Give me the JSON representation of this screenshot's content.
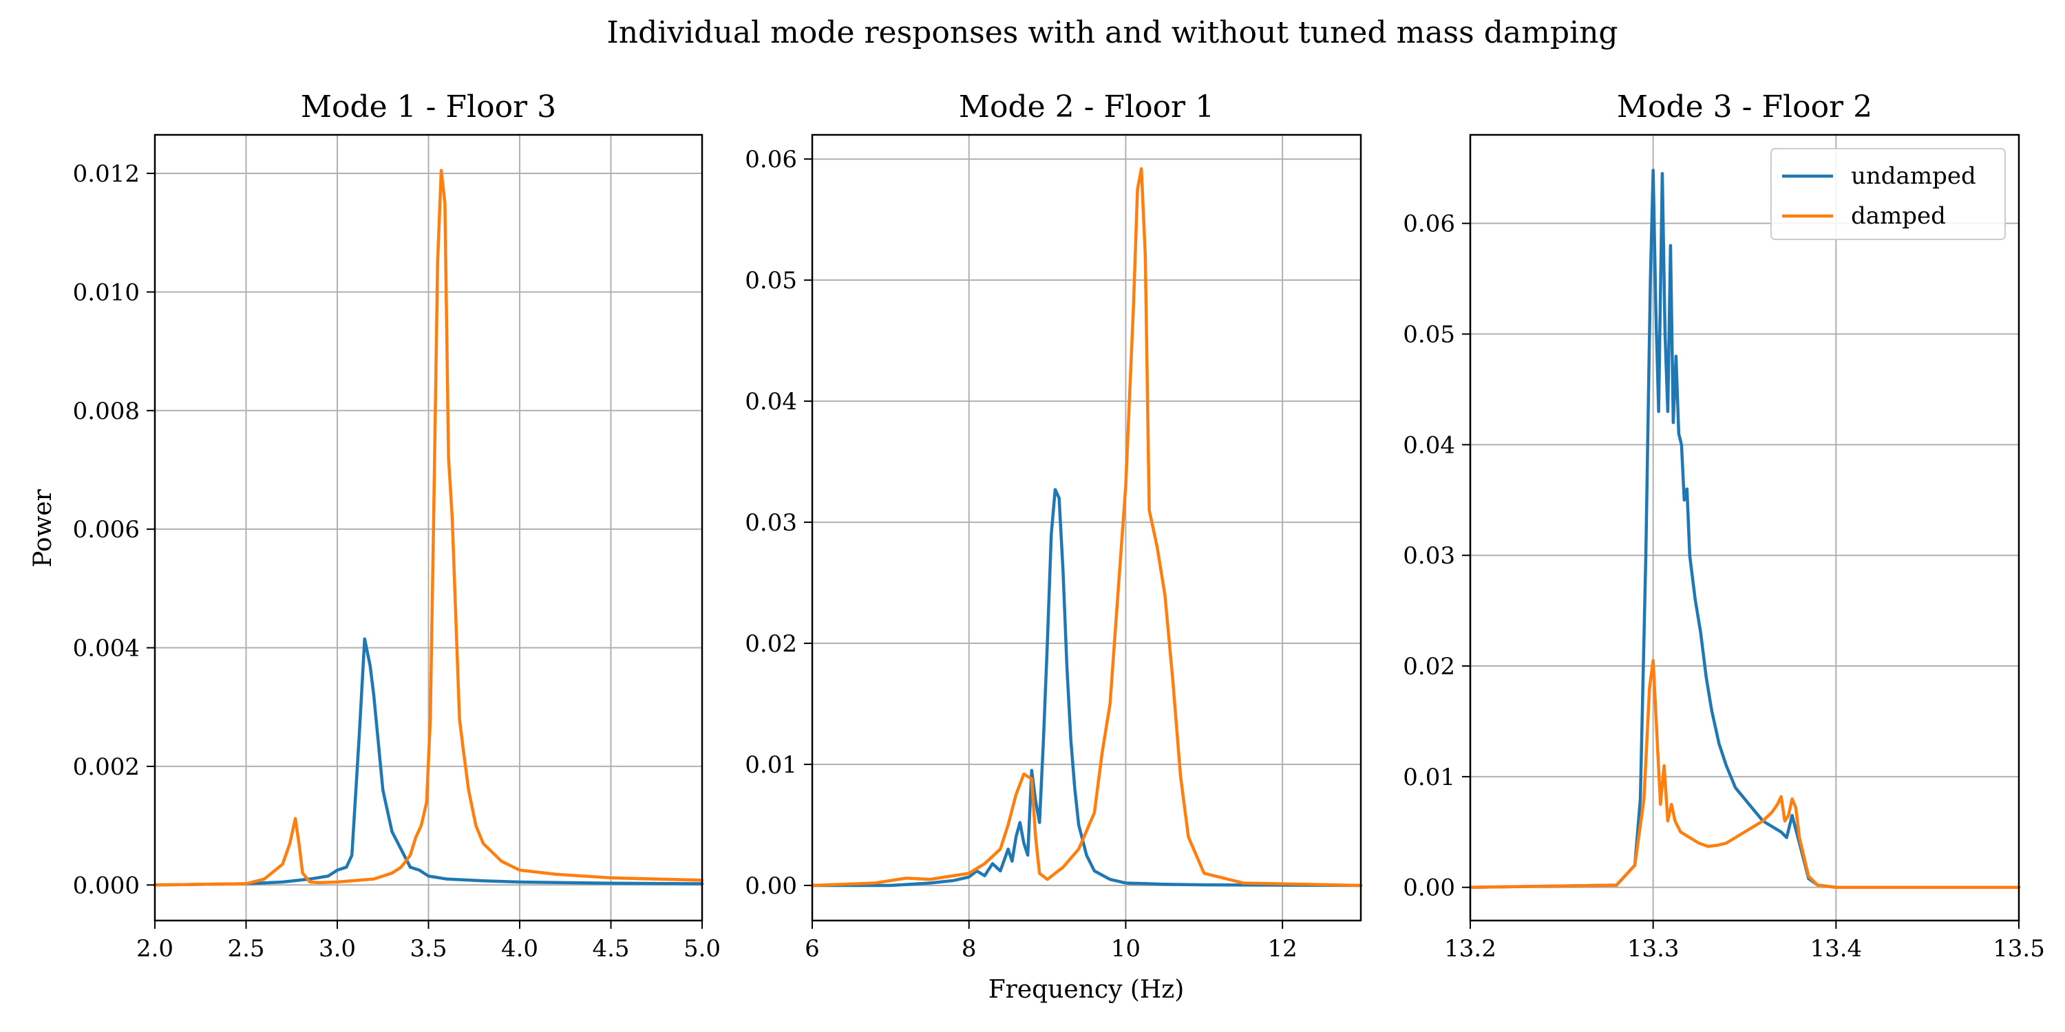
{
  "figure": {
    "suptitle": "Individual mode responses with and without tuned mass damping",
    "ylabel": "Power",
    "xlabel": "Frequency (Hz)",
    "colors": {
      "undamped": "#1f77b4",
      "damped": "#ff7f0e",
      "grid": "#b0b0b0"
    }
  },
  "chart_data": [
    {
      "type": "line",
      "title": "Mode 1 - Floor 3",
      "xlim": [
        2.0,
        5.0
      ],
      "ylim": [
        -0.0006,
        0.01265
      ],
      "xticks": [
        2.0,
        2.5,
        3.0,
        3.5,
        4.0,
        4.5,
        5.0
      ],
      "xtick_labels": [
        "2.0",
        "2.5",
        "3.0",
        "3.5",
        "4.0",
        "4.5",
        "5.0"
      ],
      "yticks": [
        0,
        0.002,
        0.004,
        0.006,
        0.008,
        0.01,
        0.012
      ],
      "ytick_labels": [
        "0.000",
        "0.002",
        "0.004",
        "0.006",
        "0.008",
        "0.010",
        "0.012"
      ],
      "grid": true,
      "series": [
        {
          "name": "undamped",
          "x": [
            2.0,
            2.5,
            2.7,
            2.85,
            2.95,
            3.0,
            3.05,
            3.08,
            3.12,
            3.15,
            3.18,
            3.2,
            3.25,
            3.3,
            3.35,
            3.4,
            3.45,
            3.5,
            3.6,
            3.8,
            4.0,
            4.5,
            5.0
          ],
          "y": [
            0.0,
            2e-05,
            5e-05,
            0.0001,
            0.00015,
            0.00025,
            0.0003,
            0.0005,
            0.0025,
            0.00415,
            0.0037,
            0.0032,
            0.0016,
            0.0009,
            0.0006,
            0.0003,
            0.00025,
            0.00015,
            0.0001,
            7e-05,
            5e-05,
            3e-05,
            2e-05
          ]
        },
        {
          "name": "damped",
          "x": [
            2.0,
            2.5,
            2.6,
            2.7,
            2.74,
            2.77,
            2.79,
            2.81,
            2.85,
            2.9,
            3.0,
            3.2,
            3.3,
            3.35,
            3.4,
            3.43,
            3.46,
            3.49,
            3.51,
            3.53,
            3.55,
            3.57,
            3.59,
            3.61,
            3.63,
            3.65,
            3.67,
            3.69,
            3.72,
            3.76,
            3.8,
            3.9,
            4.0,
            4.2,
            4.5,
            5.0
          ],
          "y": [
            0.0,
            2e-05,
            0.0001,
            0.00035,
            0.0007,
            0.00112,
            0.0007,
            0.0002,
            5e-05,
            4e-05,
            5e-05,
            0.0001,
            0.0002,
            0.0003,
            0.0005,
            0.0008,
            0.001,
            0.0014,
            0.0028,
            0.0065,
            0.0105,
            0.01205,
            0.0115,
            0.0072,
            0.0062,
            0.0045,
            0.0028,
            0.0023,
            0.0016,
            0.001,
            0.0007,
            0.0004,
            0.00025,
            0.00018,
            0.00012,
            8e-05
          ]
        }
      ]
    },
    {
      "type": "line",
      "title": "Mode 2 - Floor 1",
      "xlim": [
        6.0,
        13.0
      ],
      "ylim": [
        -0.0029,
        0.062
      ],
      "xticks": [
        6,
        8,
        10,
        12
      ],
      "xtick_labels": [
        "6",
        "8",
        "10",
        "12"
      ],
      "yticks": [
        0,
        0.01,
        0.02,
        0.03,
        0.04,
        0.05,
        0.06
      ],
      "ytick_labels": [
        "0.00",
        "0.01",
        "0.02",
        "0.03",
        "0.04",
        "0.05",
        "0.06"
      ],
      "grid": true,
      "series": [
        {
          "name": "undamped",
          "x": [
            6.0,
            7.0,
            7.5,
            7.8,
            8.0,
            8.1,
            8.2,
            8.3,
            8.4,
            8.5,
            8.55,
            8.6,
            8.65,
            8.7,
            8.75,
            8.8,
            8.85,
            8.9,
            8.95,
            9.0,
            9.05,
            9.1,
            9.15,
            9.2,
            9.25,
            9.3,
            9.35,
            9.4,
            9.5,
            9.6,
            9.8,
            10.0,
            10.5,
            11.0,
            13.0
          ],
          "y": [
            0.0,
            0.0,
            0.0002,
            0.0004,
            0.0007,
            0.0012,
            0.0008,
            0.0018,
            0.0012,
            0.003,
            0.002,
            0.004,
            0.0052,
            0.0035,
            0.0025,
            0.0095,
            0.007,
            0.0052,
            0.012,
            0.02,
            0.029,
            0.0327,
            0.032,
            0.026,
            0.018,
            0.012,
            0.008,
            0.005,
            0.0025,
            0.0012,
            0.0005,
            0.0002,
            0.0001,
            5e-05,
            0.0
          ]
        },
        {
          "name": "damped",
          "x": [
            6.0,
            6.8,
            7.2,
            7.5,
            7.8,
            8.0,
            8.2,
            8.4,
            8.5,
            8.6,
            8.7,
            8.8,
            8.85,
            8.9,
            9.0,
            9.2,
            9.4,
            9.6,
            9.7,
            9.8,
            9.9,
            10.0,
            10.1,
            10.15,
            10.2,
            10.25,
            10.3,
            10.4,
            10.5,
            10.6,
            10.7,
            10.8,
            11.0,
            11.5,
            13.0
          ],
          "y": [
            0.0,
            0.0002,
            0.0006,
            0.0005,
            0.0008,
            0.001,
            0.0018,
            0.003,
            0.005,
            0.0075,
            0.0092,
            0.0088,
            0.004,
            0.001,
            0.0005,
            0.0015,
            0.003,
            0.006,
            0.011,
            0.015,
            0.024,
            0.033,
            0.048,
            0.0575,
            0.0592,
            0.052,
            0.031,
            0.028,
            0.024,
            0.017,
            0.009,
            0.004,
            0.001,
            0.0002,
            0.0
          ]
        }
      ]
    },
    {
      "type": "line",
      "title": "Mode 3 - Floor 2",
      "xlim": [
        13.2,
        13.5
      ],
      "ylim": [
        -0.003,
        0.068
      ],
      "xticks": [
        13.2,
        13.3,
        13.4,
        13.5
      ],
      "xtick_labels": [
        "13.2",
        "13.3",
        "13.4",
        "13.5"
      ],
      "yticks": [
        0,
        0.01,
        0.02,
        0.03,
        0.04,
        0.05,
        0.06
      ],
      "ytick_labels": [
        "0.00",
        "0.01",
        "0.02",
        "0.03",
        "0.04",
        "0.05",
        "0.06"
      ],
      "grid": true,
      "legend": {
        "entries": [
          "undamped",
          "damped"
        ],
        "placement": "upper right"
      },
      "series": [
        {
          "name": "undamped",
          "x": [
            13.2,
            13.28,
            13.29,
            13.293,
            13.296,
            13.2985,
            13.3,
            13.3015,
            13.303,
            13.305,
            13.3065,
            13.308,
            13.3095,
            13.311,
            13.3125,
            13.314,
            13.3155,
            13.317,
            13.3185,
            13.32,
            13.323,
            13.326,
            13.329,
            13.332,
            13.336,
            13.34,
            13.345,
            13.35,
            13.355,
            13.36,
            13.365,
            13.37,
            13.373,
            13.376,
            13.38,
            13.385,
            13.39,
            13.4,
            13.5
          ],
          "y": [
            0.0,
            0.0002,
            0.002,
            0.008,
            0.03,
            0.055,
            0.0648,
            0.052,
            0.043,
            0.0645,
            0.05,
            0.043,
            0.058,
            0.042,
            0.048,
            0.041,
            0.04,
            0.035,
            0.036,
            0.03,
            0.026,
            0.023,
            0.019,
            0.016,
            0.013,
            0.011,
            0.009,
            0.008,
            0.007,
            0.006,
            0.0055,
            0.005,
            0.0045,
            0.0065,
            0.004,
            0.0008,
            0.0002,
            0.0,
            0.0
          ]
        },
        {
          "name": "damped",
          "x": [
            13.2,
            13.28,
            13.29,
            13.295,
            13.298,
            13.3,
            13.302,
            13.304,
            13.306,
            13.308,
            13.31,
            13.312,
            13.315,
            13.32,
            13.325,
            13.33,
            13.335,
            13.34,
            13.345,
            13.35,
            13.355,
            13.36,
            13.365,
            13.368,
            13.37,
            13.372,
            13.374,
            13.376,
            13.378,
            13.38,
            13.385,
            13.39,
            13.4,
            13.5
          ],
          "y": [
            0.0,
            0.0002,
            0.002,
            0.008,
            0.018,
            0.0205,
            0.014,
            0.0075,
            0.011,
            0.006,
            0.0075,
            0.006,
            0.005,
            0.0045,
            0.004,
            0.0037,
            0.0038,
            0.004,
            0.0045,
            0.005,
            0.0055,
            0.006,
            0.0068,
            0.0075,
            0.0082,
            0.006,
            0.0065,
            0.008,
            0.0072,
            0.0045,
            0.001,
            0.0002,
            0.0,
            0.0
          ]
        }
      ]
    }
  ]
}
